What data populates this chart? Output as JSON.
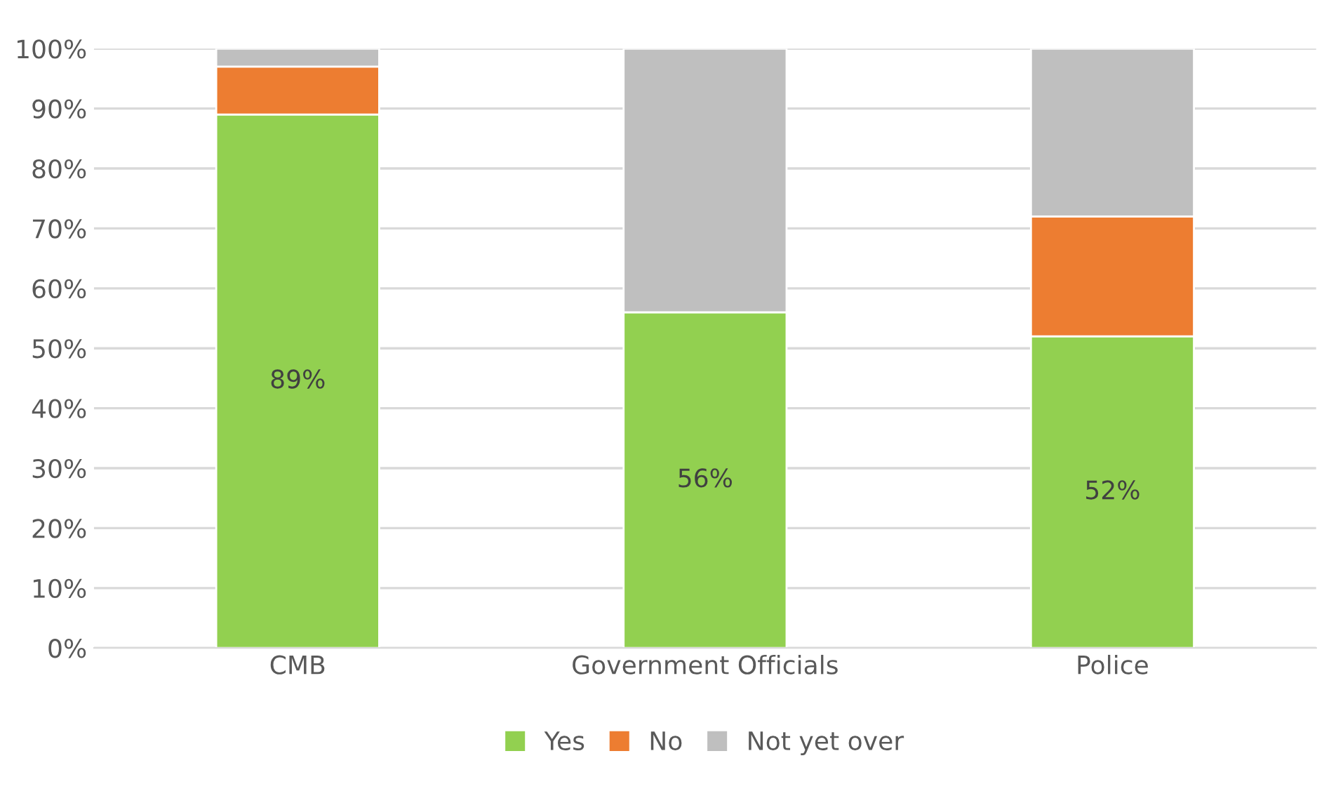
{
  "chart_data": {
    "type": "bar",
    "stacked": true,
    "categories": [
      "CMB",
      "Government Officials",
      "Police"
    ],
    "series": [
      {
        "name": "Yes",
        "color": "#92d050",
        "values": [
          89,
          56,
          52
        ],
        "value_labels": [
          "89%",
          "56%",
          "52%"
        ]
      },
      {
        "name": "No",
        "color": "#ed7d31",
        "values": [
          8,
          0,
          20
        ]
      },
      {
        "name": "Not yet over",
        "color": "#bfbfbf",
        "values": [
          3,
          44,
          28
        ]
      }
    ],
    "ylim": [
      0,
      100
    ],
    "yticks": [
      {
        "value": 0,
        "label": "0%"
      },
      {
        "value": 10,
        "label": "10%"
      },
      {
        "value": 20,
        "label": "20%"
      },
      {
        "value": 30,
        "label": "30%"
      },
      {
        "value": 40,
        "label": "40%"
      },
      {
        "value": 50,
        "label": "50%"
      },
      {
        "value": 60,
        "label": "60%"
      },
      {
        "value": 70,
        "label": "70%"
      },
      {
        "value": 80,
        "label": "80%"
      },
      {
        "value": 90,
        "label": "90%"
      },
      {
        "value": 100,
        "label": "100%"
      }
    ],
    "grid": "y",
    "legend": "bottom"
  }
}
